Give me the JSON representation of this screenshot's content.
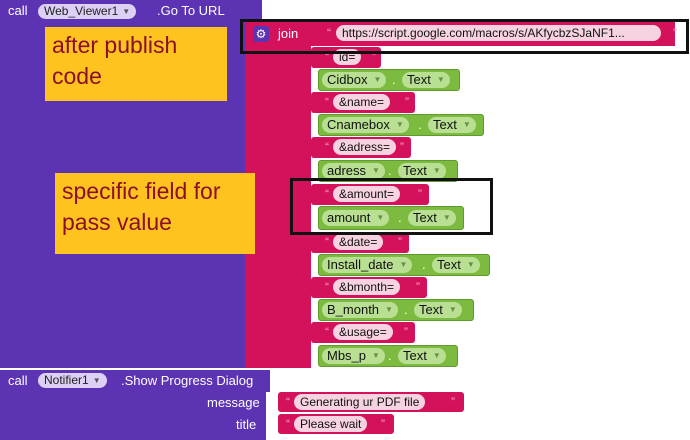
{
  "block1": {
    "call_label": "call",
    "component": "Web_Viewer1",
    "method": ".Go To URL",
    "join_label": "join",
    "url_string": "https://script.google.com/macros/s/AKfycbzSJaNF1...",
    "items": [
      {
        "type": "string",
        "text": "id="
      },
      {
        "type": "getter",
        "component": "Cidbox",
        "property": "Text"
      },
      {
        "type": "string",
        "text": "&name="
      },
      {
        "type": "getter",
        "component": "Cnamebox",
        "property": "Text"
      },
      {
        "type": "string",
        "text": "&adress="
      },
      {
        "type": "getter",
        "component": "adress",
        "property": "Text"
      },
      {
        "type": "string",
        "text": "&amount="
      },
      {
        "type": "getter",
        "component": "amount",
        "property": "Text"
      },
      {
        "type": "string",
        "text": "&date="
      },
      {
        "type": "getter",
        "component": "Install_date",
        "property": "Text"
      },
      {
        "type": "string",
        "text": "&bmonth="
      },
      {
        "type": "getter",
        "component": "B_month",
        "property": "Text"
      },
      {
        "type": "string",
        "text": "&usage="
      },
      {
        "type": "getter",
        "component": "Mbs_p",
        "property": "Text"
      }
    ]
  },
  "block2": {
    "call_label": "call",
    "component": "Notifier1",
    "method": ".Show Progress Dialog",
    "message_label": "message",
    "message_value": "Generating ur PDF file",
    "title_label": "title",
    "title_value": "Please wait"
  },
  "annotations": {
    "note1_line1": "after publish",
    "note1_line2": "code",
    "note2_line1": "specific field for",
    "note2_line2": "pass value"
  },
  "icons": {
    "gear": "gear-icon",
    "dropdown": "dropdown-arrow-icon"
  },
  "colors": {
    "procedure_block": "#5b33b3",
    "text_block": "#d4125b",
    "component_getter": "#7cbb40",
    "annotation_note": "#fec31e",
    "annotation_text": "#8a0f2a"
  }
}
